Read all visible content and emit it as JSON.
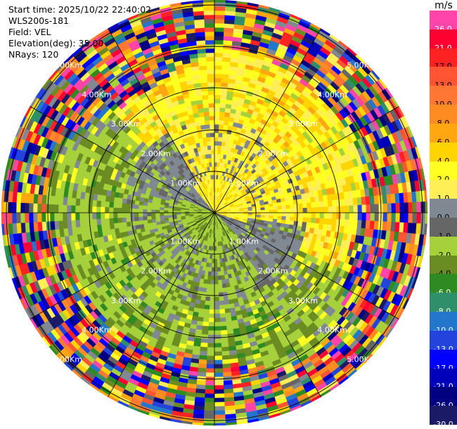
{
  "header": {
    "start_time": "Start time: 2025/10/22 22:40:02",
    "site": "WLS200s-181",
    "field": "Field: VEL",
    "elevation": "Elevation(deg): 35.00",
    "nrays": "NRays: 120"
  },
  "colorbar": {
    "unit": "m/s",
    "segments": [
      {
        "label": "26.0",
        "color": "#ff44aa",
        "light": true
      },
      {
        "label": "21.0",
        "color": "#ff0033",
        "light": true
      },
      {
        "label": "17.0",
        "color": "#ff2222",
        "light": false
      },
      {
        "label": "13.0",
        "color": "#ff5533",
        "light": false
      },
      {
        "label": "10.0",
        "color": "#ff7733",
        "light": false
      },
      {
        "label": "8.0",
        "color": "#ff8c22",
        "light": false
      },
      {
        "label": "6.0",
        "color": "#ffa611",
        "light": false
      },
      {
        "label": "4.0",
        "color": "#ffd400",
        "light": false
      },
      {
        "label": "2.0",
        "color": "#ffff22",
        "light": false
      },
      {
        "label": "1.0",
        "color": "#ffee55",
        "light": false
      },
      {
        "label": "0.0",
        "color": "#808892",
        "light": false
      },
      {
        "label": "-1.0",
        "color": "#666666",
        "light": false
      },
      {
        "label": "-2.0",
        "color": "#a6d13a",
        "light": false
      },
      {
        "label": "-4.0",
        "color": "#6b8c22",
        "light": false
      },
      {
        "label": "-6.0",
        "color": "#2e8b22",
        "light": true
      },
      {
        "label": "-8.0",
        "color": "#2f8f6a",
        "light": true
      },
      {
        "label": "-10.0",
        "color": "#2277cc",
        "light": true
      },
      {
        "label": "-13.0",
        "color": "#2244dd",
        "light": true
      },
      {
        "label": "-17.0",
        "color": "#0000ff",
        "light": true
      },
      {
        "label": "-21.0",
        "color": "#0000bb",
        "light": true
      },
      {
        "label": "-26.0",
        "color": "#000080",
        "light": true
      },
      {
        "label": "-30.0",
        "color": "#1a1a66",
        "light": true
      }
    ]
  },
  "range_labels": [
    "1.00Km",
    "2.00Km",
    "3.00Km",
    "4.00Km",
    "5.00Km"
  ],
  "icons": {
    "radar_display": "ppi-scan-display"
  }
}
